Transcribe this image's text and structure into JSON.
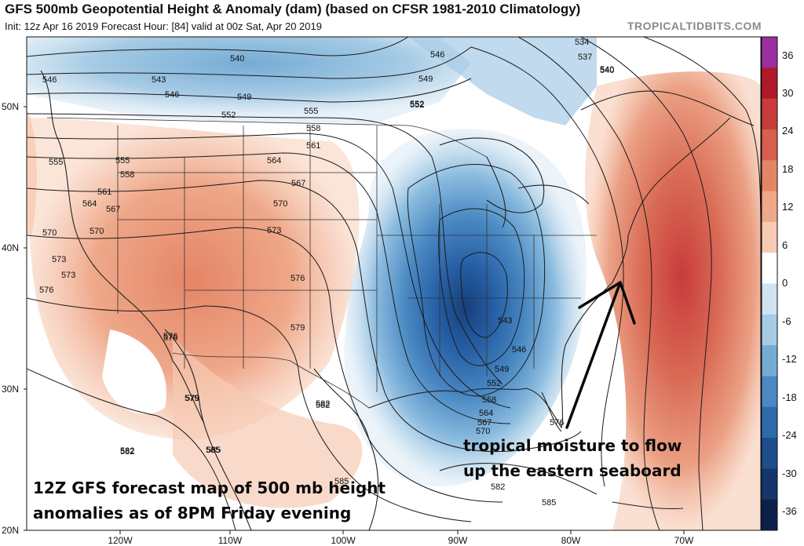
{
  "header": {
    "title": "GFS 500mb Geopotential Height & Anomaly (dam) (based on CFSR 1981-2010 Climatology)",
    "subtitle": "Init: 12z Apr 16 2019   Forecast Hour: [84]   valid at 00z Sat, Apr 20 2019",
    "source": "TROPICALTIDBITS.COM"
  },
  "colorbar": {
    "ticks": [
      "36",
      "30",
      "24",
      "18",
      "12",
      "6",
      "0",
      "-6",
      "-12",
      "-18",
      "-24",
      "-30",
      "-36"
    ],
    "colors": [
      "#9b2fa0",
      "#b2182b",
      "#c83b3b",
      "#d65f4d",
      "#e48566",
      "#efa88a",
      "#f7cbb3",
      "#ffffff",
      "#cfe3f1",
      "#a6cbe5",
      "#75acd4",
      "#4a89c2",
      "#2c6aac",
      "#1d4d8c",
      "#14366b",
      "#0c2049"
    ]
  },
  "axes": {
    "lat_labels": [
      "50N",
      "40N",
      "30N",
      "20N"
    ],
    "lon_labels": [
      "120W",
      "110W",
      "100W",
      "90W",
      "80W",
      "70W"
    ]
  },
  "contour_labels": [
    "546",
    "543",
    "540",
    "546",
    "549",
    "552",
    "555",
    "558",
    "561",
    "564",
    "567",
    "570",
    "573",
    "576",
    "579",
    "582",
    "585",
    "555",
    "558",
    "561",
    "564",
    "567",
    "570",
    "573",
    "576",
    "579",
    "582",
    "585",
    "546",
    "549",
    "552",
    "534",
    "537",
    "540",
    "543",
    "546",
    "549",
    "552",
    "558",
    "564",
    "567",
    "570",
    "576",
    "582",
    "585",
    "555",
    "570",
    "573",
    "576",
    "582",
    "576",
    "579",
    "585",
    "582",
    "552",
    "540"
  ],
  "annotations": {
    "moisture_line1": "tropical moisture to flow",
    "moisture_line2": "up the eastern seaboard",
    "caption_line1": "12Z GFS forecast map of 500 mb height",
    "caption_line2": "anomalies as of 8PM Friday evening"
  }
}
